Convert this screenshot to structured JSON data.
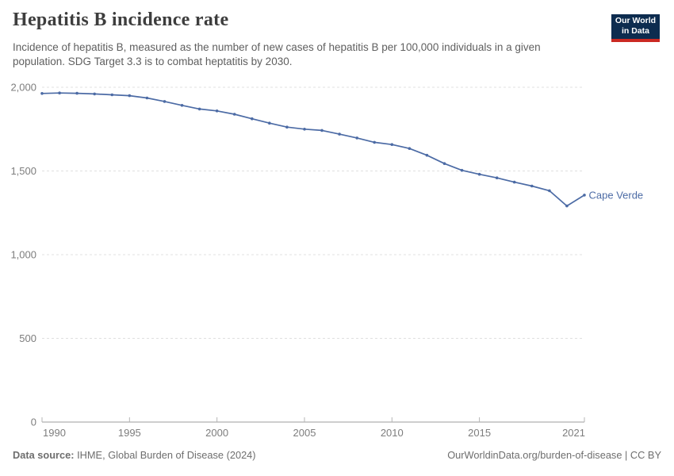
{
  "header": {
    "title": "Hepatitis B incidence rate",
    "subtitle": "Incidence of hepatitis B, measured as the number of new cases of hepatitis B per 100,000 individuals in a given population. SDG Target 3.3 is to combat heptatitis by 2030.",
    "logo": {
      "line1": "Our World",
      "line2": "in Data",
      "bg_color": "#0d2c4f",
      "bar_color": "#cb2922"
    }
  },
  "chart_data": {
    "type": "line",
    "title": "Hepatitis B incidence rate",
    "entity": "Cape Verde",
    "xlabel": "",
    "ylabel": "",
    "xlim": [
      1990,
      2021
    ],
    "ylim": [
      0,
      2000
    ],
    "grid": "horizontal-dashed",
    "legend_position": "end-of-line-label",
    "x_ticks": [
      1990,
      1995,
      2000,
      2005,
      2010,
      2015,
      2021
    ],
    "y_ticks": [
      0,
      500,
      1000,
      1500,
      2000
    ],
    "y_tick_labels": [
      "0",
      "500",
      "1,000",
      "1,500",
      "2,000"
    ],
    "series": [
      {
        "name": "Cape Verde",
        "color": "#4c6ba5",
        "x": [
          1990,
          1991,
          1992,
          1993,
          1994,
          1995,
          1996,
          1997,
          1998,
          1999,
          2000,
          2001,
          2002,
          2003,
          2004,
          2005,
          2006,
          2007,
          2008,
          2009,
          2010,
          2011,
          2012,
          2013,
          2014,
          2015,
          2016,
          2017,
          2018,
          2019,
          2020,
          2021
        ],
        "values": [
          1963,
          1966,
          1964,
          1960,
          1955,
          1950,
          1936,
          1915,
          1892,
          1870,
          1859,
          1839,
          1812,
          1786,
          1762,
          1750,
          1742,
          1720,
          1697,
          1671,
          1658,
          1634,
          1594,
          1544,
          1504,
          1480,
          1459,
          1433,
          1410,
          1382,
          1291,
          1356
        ]
      }
    ],
    "colors": {
      "grid": "#e0e0e0",
      "axis": "#9c9c9c",
      "tick": "#b5b5b5",
      "tick_label": "#7d7d7d"
    }
  },
  "footer": {
    "source_label": "Data source:",
    "source_value": " IHME, Global Burden of Disease (2024)",
    "credit": "OurWorldinData.org/burden-of-disease | CC BY"
  }
}
